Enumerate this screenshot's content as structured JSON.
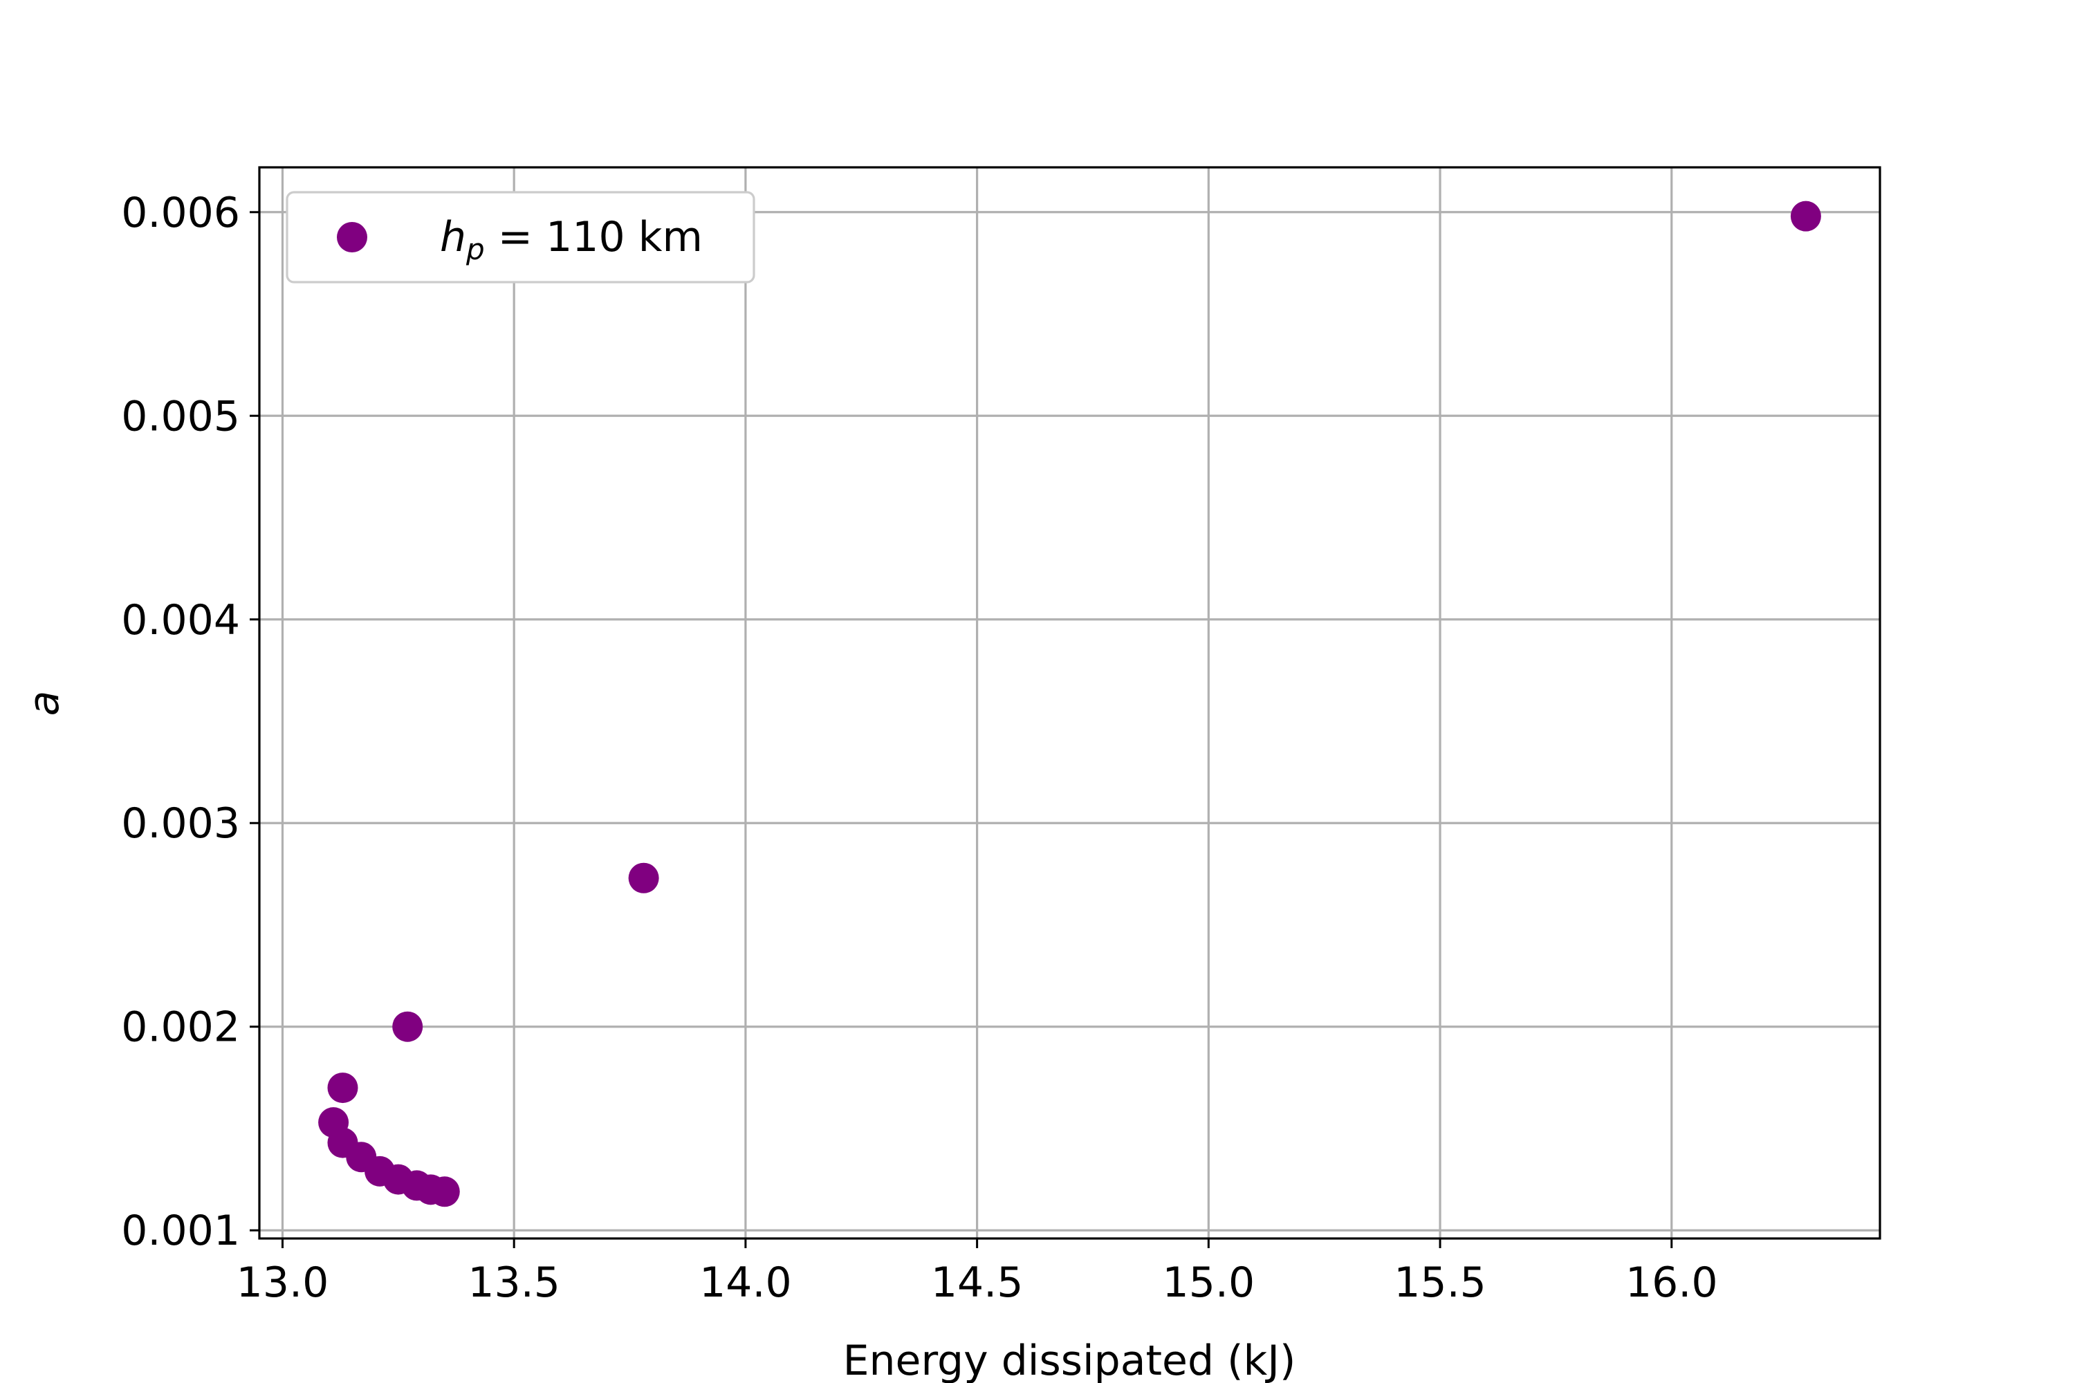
{
  "chart_data": {
    "type": "scatter",
    "xlabel": "Energy dissipated (kJ)",
    "ylabel": "a",
    "xlim": [
      12.95,
      16.45
    ],
    "ylim": [
      0.00096,
      0.00622
    ],
    "xticks": [
      13.0,
      13.5,
      14.0,
      14.5,
      15.0,
      15.5,
      16.0
    ],
    "xtick_labels": [
      "13.0",
      "13.5",
      "14.0",
      "14.5",
      "15.0",
      "15.5",
      "16.0"
    ],
    "yticks": [
      0.001,
      0.002,
      0.003,
      0.004,
      0.005,
      0.006
    ],
    "ytick_labels": [
      "0.001",
      "0.002",
      "0.003",
      "0.004",
      "0.005",
      "0.006"
    ],
    "grid": true,
    "legend_position": "upper-left",
    "series": [
      {
        "name_main": "h",
        "name_sub": "p",
        "name_rest": " = 110 km",
        "color": "#800080",
        "points": [
          {
            "x": 16.29,
            "y": 0.00598
          },
          {
            "x": 13.78,
            "y": 0.00273
          },
          {
            "x": 13.27,
            "y": 0.002
          },
          {
            "x": 13.13,
            "y": 0.0017
          },
          {
            "x": 13.11,
            "y": 0.00153
          },
          {
            "x": 13.13,
            "y": 0.00143
          },
          {
            "x": 13.17,
            "y": 0.00136
          },
          {
            "x": 13.21,
            "y": 0.00129
          },
          {
            "x": 13.25,
            "y": 0.00125
          },
          {
            "x": 13.29,
            "y": 0.00122
          },
          {
            "x": 13.32,
            "y": 0.0012
          },
          {
            "x": 13.35,
            "y": 0.00119
          }
        ]
      }
    ]
  }
}
